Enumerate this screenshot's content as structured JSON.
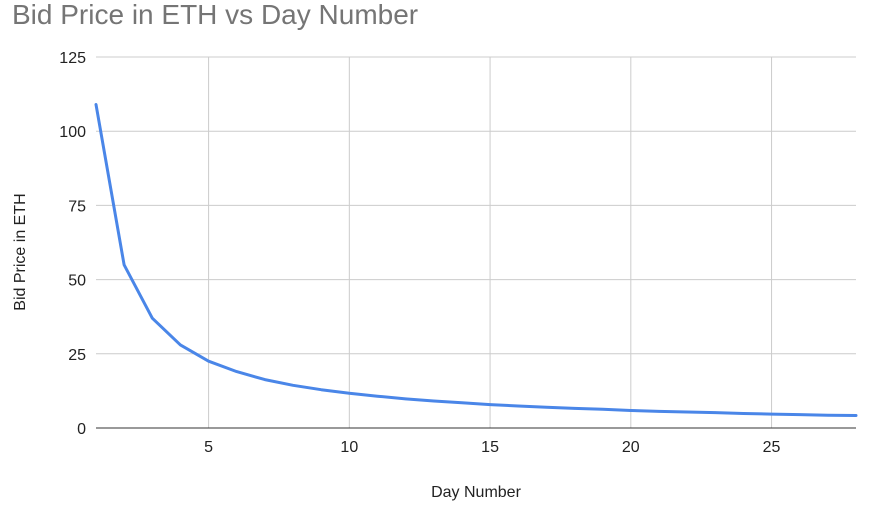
{
  "chart_data": {
    "type": "line",
    "title": "Bid Price in ETH vs Day Number",
    "xlabel": "Day Number",
    "ylabel": "Bid Price in ETH",
    "xlim": [
      1,
      28
    ],
    "ylim": [
      0,
      125
    ],
    "xticks": [
      5,
      10,
      15,
      20,
      25
    ],
    "yticks": [
      0,
      25,
      50,
      75,
      100,
      125
    ],
    "grid": true,
    "legend": "none",
    "series": [
      {
        "color": "#4a86e8",
        "x": [
          1,
          2,
          3,
          4,
          5,
          6,
          7,
          8,
          9,
          10,
          11,
          12,
          13,
          14,
          15,
          16,
          17,
          18,
          19,
          20,
          21,
          22,
          23,
          24,
          25,
          26,
          27,
          28
        ],
        "y": [
          109,
          55,
          37,
          28,
          22.5,
          19,
          16.3,
          14.4,
          12.9,
          11.7,
          10.7,
          9.8,
          9.1,
          8.5,
          7.9,
          7.4,
          7.0,
          6.6,
          6.3,
          5.9,
          5.6,
          5.4,
          5.2,
          4.9,
          4.7,
          4.5,
          4.3,
          4.2
        ]
      }
    ]
  }
}
